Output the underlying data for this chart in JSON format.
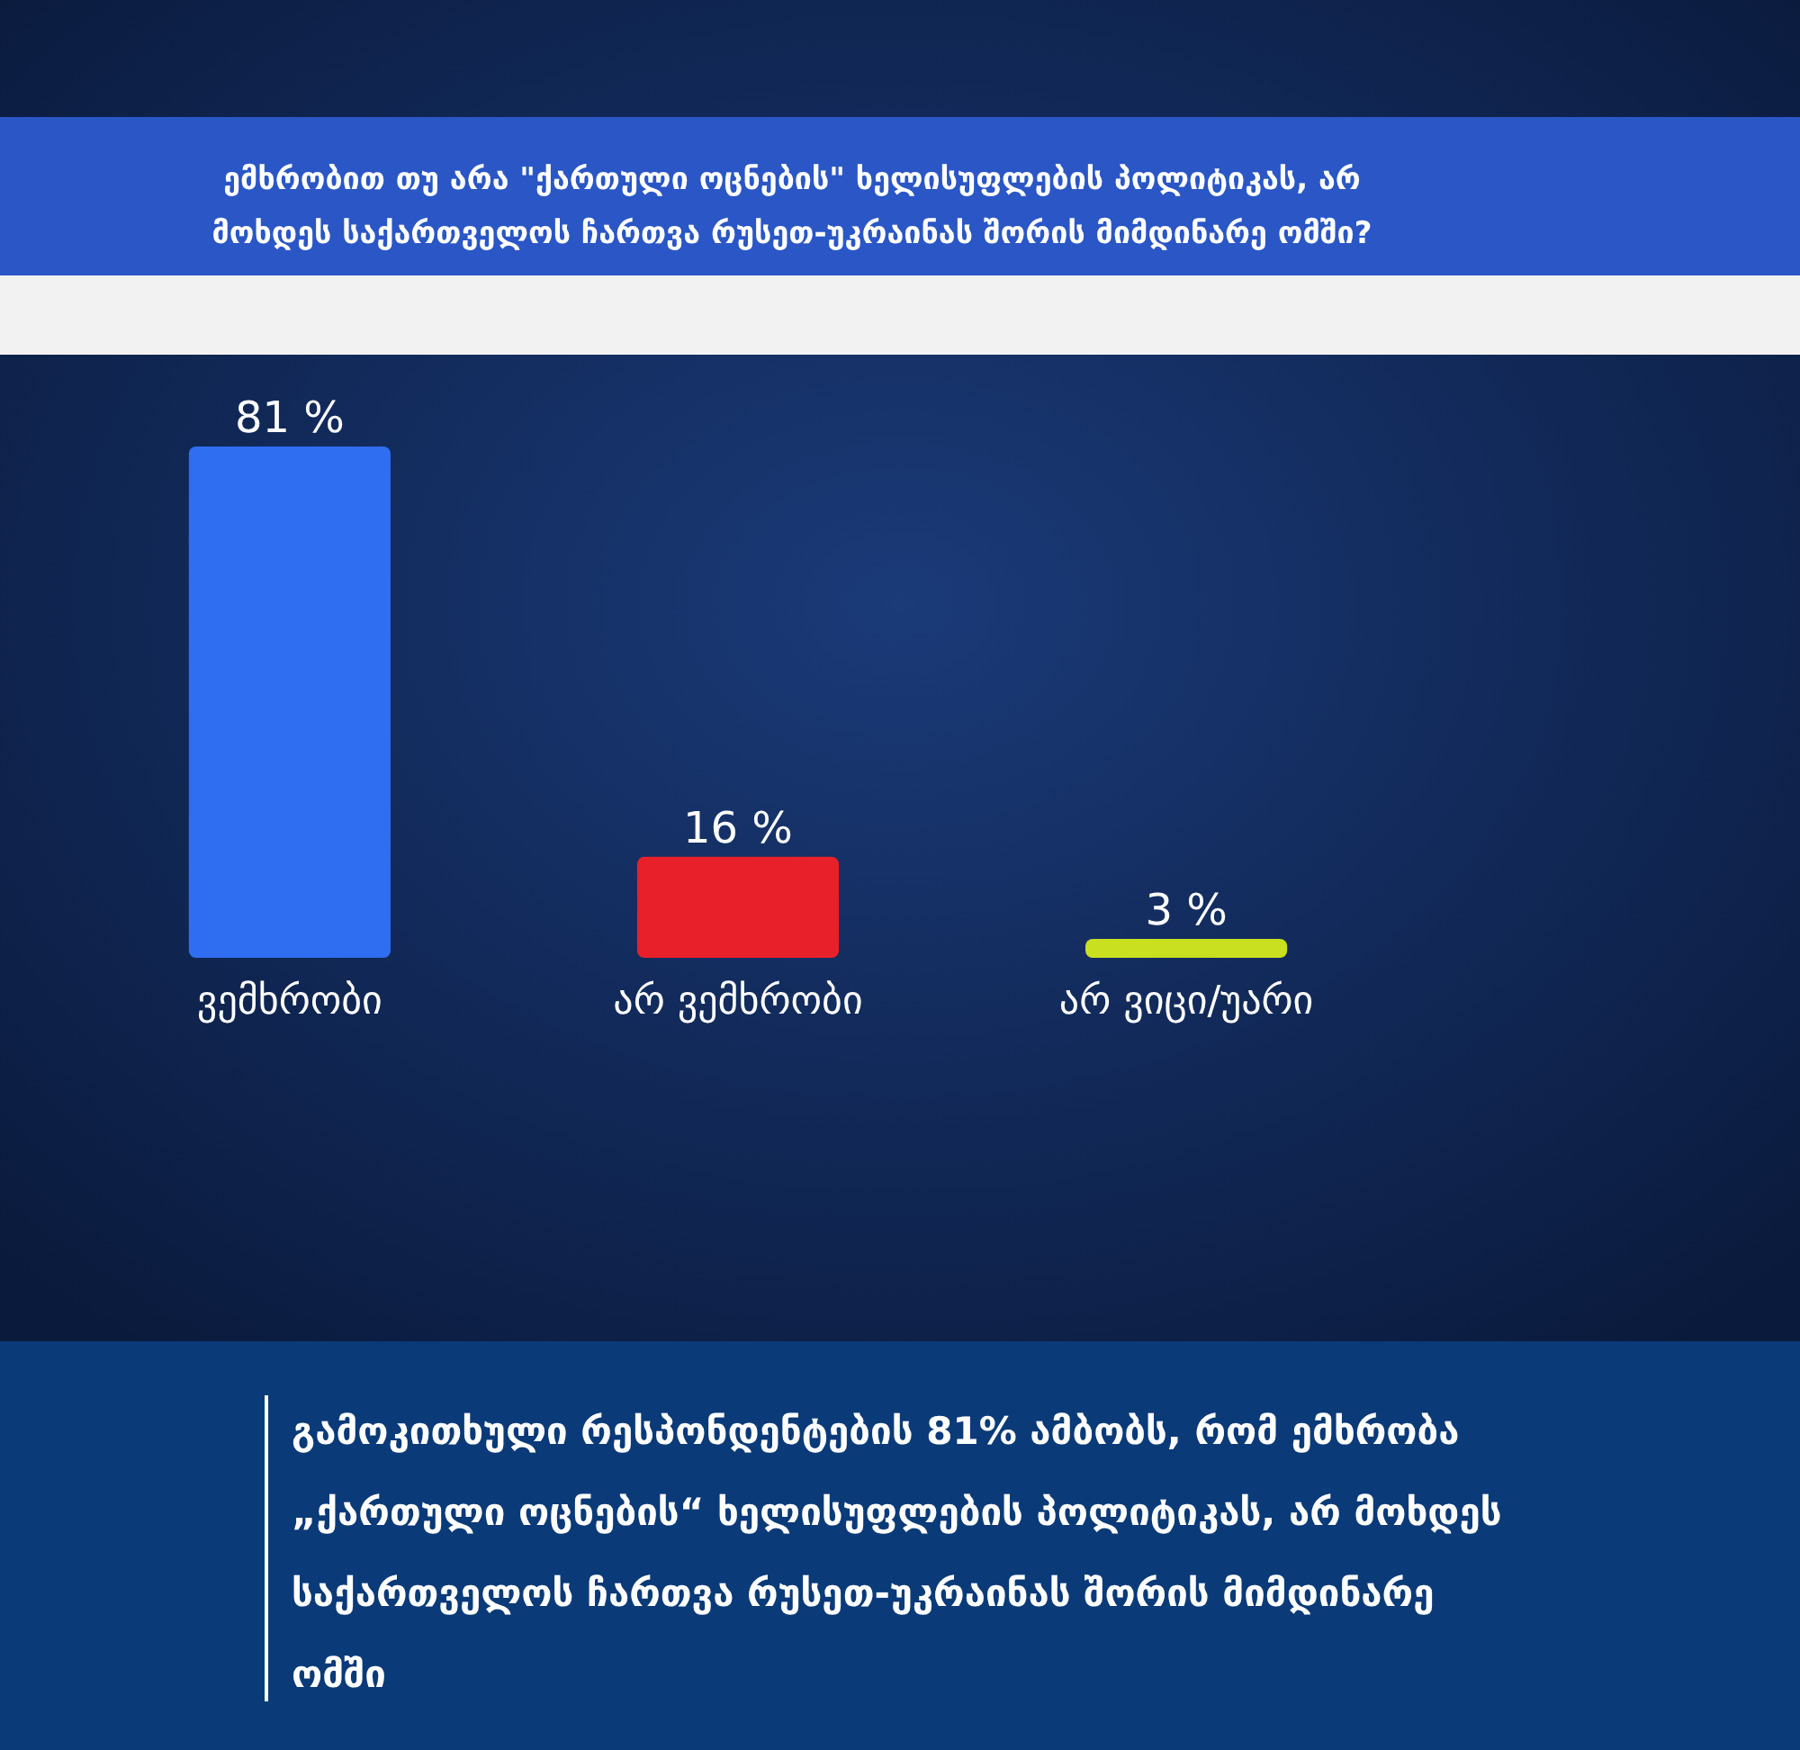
{
  "chart_data": {
    "type": "bar",
    "title": "ემხრობით თუ არა \"ქართული ოცნების\" ხელისუფლების პოლიტიკას, არ მოხდეს საქართველოს ჩართვა რუსეთ-უკრაინას შორის მიმდინარე ომში?",
    "categories": [
      "ვემხრობი",
      "არ ვემხრობი",
      "არ ვიცი/უარი"
    ],
    "values": [
      81,
      16,
      3
    ],
    "colors": [
      "#2f6ef0",
      "#e8202a",
      "#c8e020"
    ],
    "value_labels": [
      "81 %",
      "16 %",
      "3 %"
    ],
    "annotations": [
      "გამოკითხული რესპონდენტების 81% ამბობს, რომ ემხრობა „ქართული ოცნების“ ხელისუფლების პოლიტიკას, არ მოხდეს საქართველოს ჩართვა რუსეთ-უკრაინას შორის მიმდინარე ომში"
    ]
  }
}
